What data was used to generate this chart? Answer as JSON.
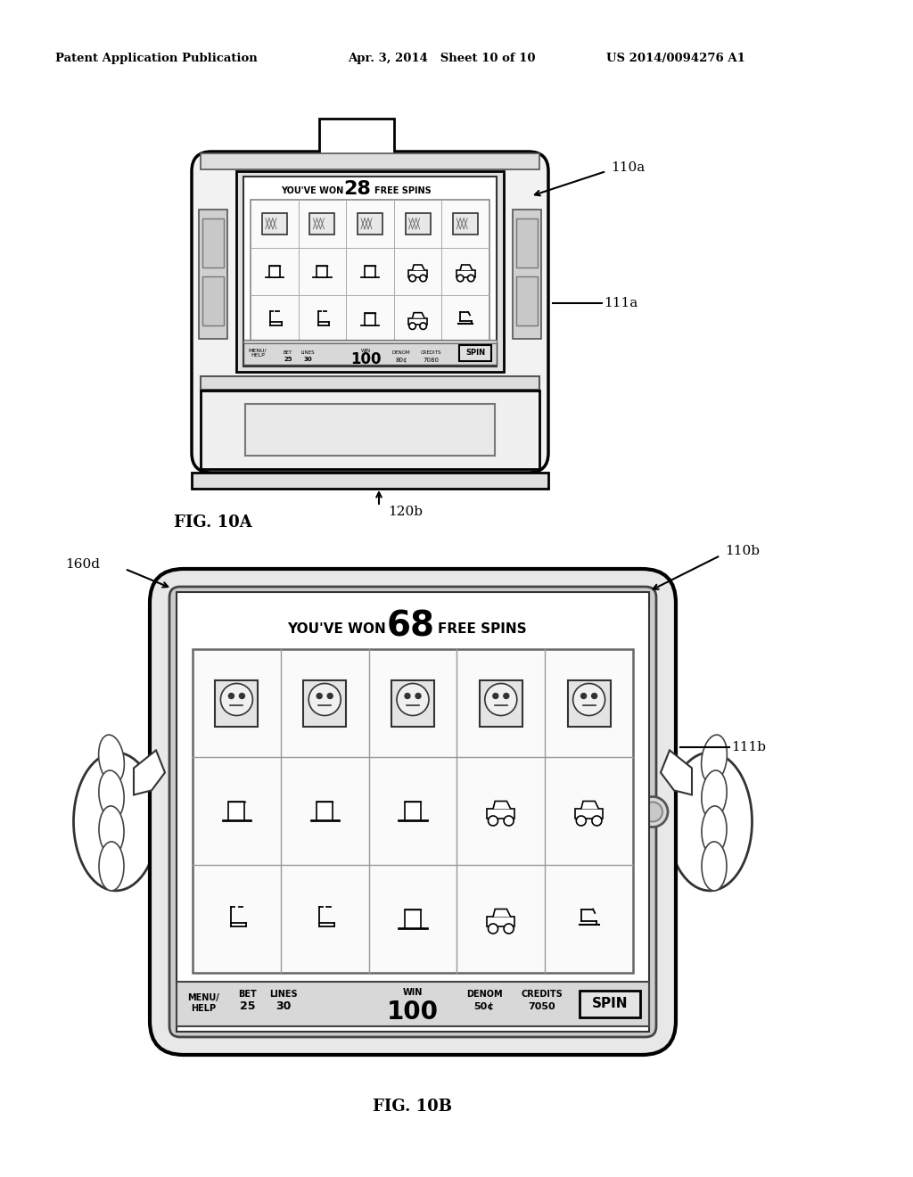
{
  "bg_color": "#ffffff",
  "header_left": "Patent Application Publication",
  "header_center": "Apr. 3, 2014   Sheet 10 of 10",
  "header_right": "US 2014/0094276 A1",
  "fig10a_label": "FIG. 10A",
  "fig10b_label": "FIG. 10B",
  "label_110a": "110a",
  "label_111a": "111a",
  "label_120b": "120b",
  "label_110b": "110b",
  "label_111b": "111b",
  "label_160d": "160d"
}
